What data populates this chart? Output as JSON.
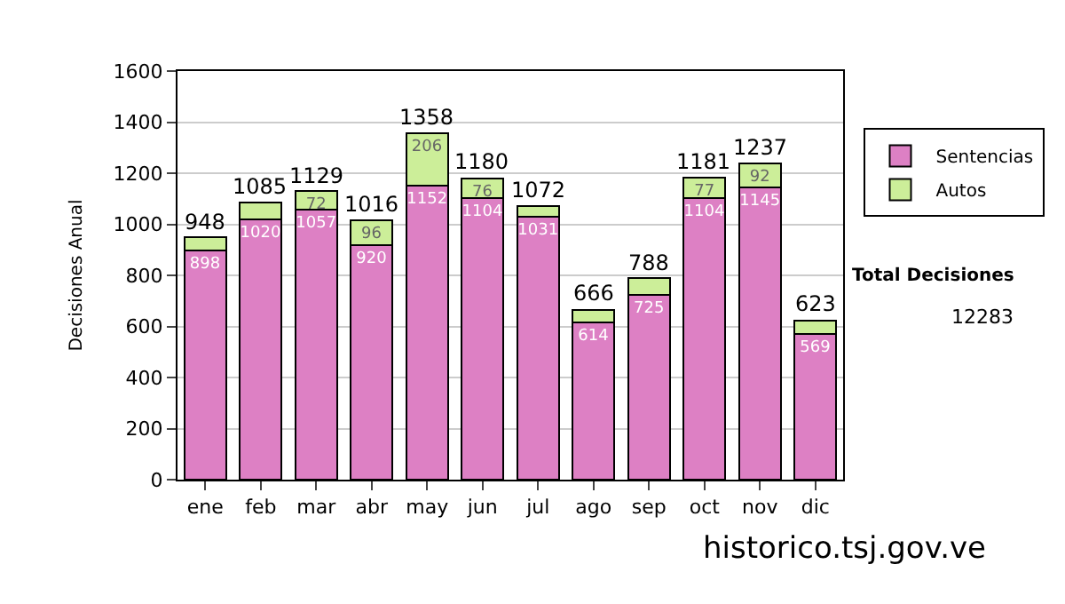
{
  "chart_data": {
    "type": "bar",
    "stacked": true,
    "ylabel": "Decisiones Anual",
    "categories": [
      "ene",
      "feb",
      "mar",
      "abr",
      "may",
      "jun",
      "jul",
      "ago",
      "sep",
      "oct",
      "nov",
      "dic"
    ],
    "series": [
      {
        "name": "Sentencias",
        "color": "#dd80c4",
        "values": [
          898,
          1020,
          1057,
          920,
          1152,
          1104,
          1031,
          614,
          725,
          1104,
          1145,
          569
        ],
        "value_labels": [
          "898",
          "1020",
          "1057",
          "920",
          "1152",
          "1104",
          "1031",
          "614",
          "725",
          "1104",
          "1145",
          "569"
        ]
      },
      {
        "name": "Autos",
        "color": "#ccee99",
        "values": [
          50,
          65,
          72,
          96,
          206,
          76,
          41,
          52,
          63,
          77,
          92,
          54
        ],
        "value_labels": [
          null,
          null,
          "72",
          "96",
          "206",
          "76",
          null,
          null,
          null,
          "77",
          "92",
          null
        ]
      }
    ],
    "totals": [
      "948",
      "1085",
      "1129",
      "1016",
      "1358",
      "1180",
      "1072",
      "666",
      "788",
      "1181",
      "1237",
      "623"
    ],
    "ylim": [
      0,
      1600
    ],
    "yticks": [
      0,
      200,
      400,
      600,
      800,
      1000,
      1200,
      1400,
      1600
    ],
    "grid": "y",
    "legend": "right",
    "annotations": [
      "Total Decisiones",
      "12283",
      "historico.tsj.gov.ve"
    ]
  }
}
